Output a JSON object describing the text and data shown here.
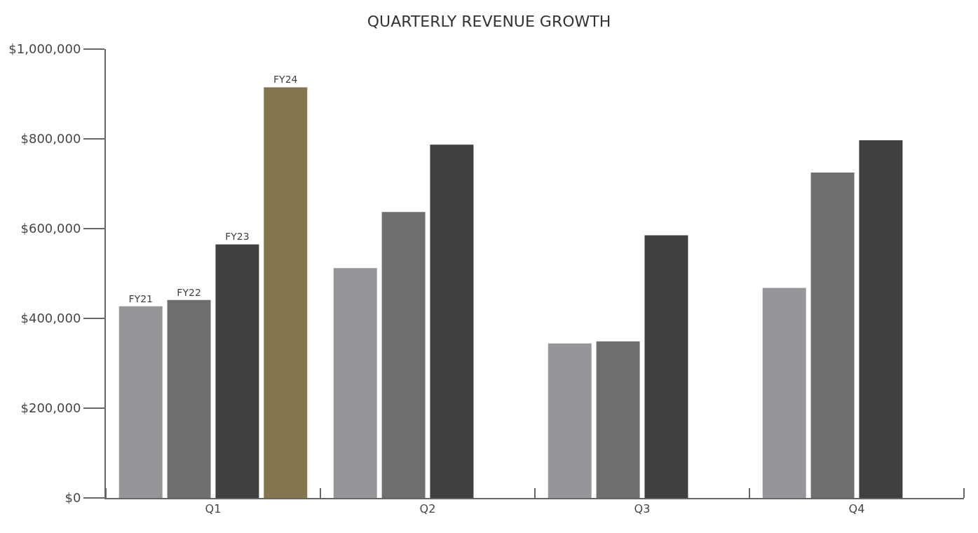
{
  "chart_data": {
    "type": "bar",
    "title": "QUARTERLY REVENUE GROWTH",
    "categories": [
      "Q1",
      "Q2",
      "Q3",
      "Q4"
    ],
    "series": [
      {
        "name": "FY21",
        "color": "#96969a",
        "values": [
          427000,
          512000,
          344000,
          468000
        ]
      },
      {
        "name": "FY22",
        "color": "#6e6e6e",
        "values": [
          441000,
          637000,
          349000,
          725000
        ]
      },
      {
        "name": "FY23",
        "color": "#404040",
        "values": [
          565000,
          787000,
          585000,
          797000
        ]
      },
      {
        "name": "FY24",
        "color": "#85754e",
        "values": [
          915000,
          null,
          null,
          null
        ]
      }
    ],
    "ylim": [
      0,
      1000000
    ],
    "yticks": [
      {
        "value": 0,
        "label": "$0"
      },
      {
        "value": 200000,
        "label": "$200,000"
      },
      {
        "value": 400000,
        "label": "$400,000"
      },
      {
        "value": 600000,
        "label": "$600,000"
      },
      {
        "value": 800000,
        "label": "$800,000"
      },
      {
        "value": 1000000,
        "label": "$1,000,000"
      }
    ],
    "grid": false,
    "legend": false
  }
}
